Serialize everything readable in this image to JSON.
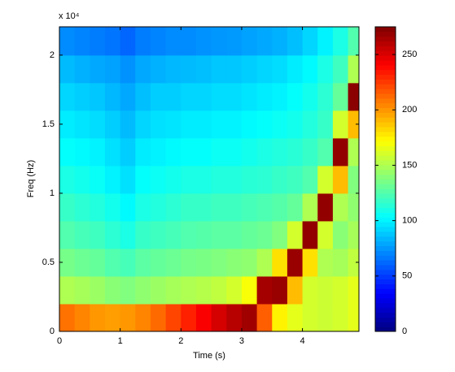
{
  "chart_data": {
    "type": "heatmap",
    "xlabel": "Time (s)",
    "ylabel": "Freq (Hz)",
    "y_multiplier": "x 10⁴",
    "xlim": [
      0,
      4.93
    ],
    "ylim": [
      0,
      22050
    ],
    "xticks": [
      0,
      1,
      2,
      3,
      4
    ],
    "yticks": [
      0,
      {
        "value": 5000,
        "label": "0.5"
      },
      {
        "value": 10000,
        "label": "1"
      },
      {
        "value": 15000,
        "label": "1.5"
      },
      {
        "value": 20000,
        "label": "2"
      }
    ],
    "xbins": [
      0,
      0.25,
      0.5,
      0.75,
      1,
      1.25,
      1.5,
      1.75,
      2,
      2.25,
      2.5,
      2.75,
      3,
      3.25,
      3.5,
      3.75,
      4,
      4.25,
      4.5,
      4.75,
      4.93
    ],
    "ybins": [
      0,
      2000,
      4000,
      6000,
      8000,
      10000,
      12000,
      14000,
      16000,
      18000,
      20000,
      22050
    ],
    "clim": [
      0,
      275
    ],
    "cticks": [
      0,
      50,
      100,
      150,
      200,
      250
    ],
    "colormap": "jet",
    "values": [
      [
        210,
        205,
        200,
        198,
        200,
        205,
        212,
        222,
        232,
        242,
        252,
        260,
        266,
        215,
        175,
        165,
        160,
        158,
        160,
        165
      ],
      [
        150,
        148,
        145,
        140,
        138,
        142,
        145,
        148,
        150,
        152,
        155,
        160,
        170,
        265,
        268,
        190,
        160,
        158,
        160,
        165
      ],
      [
        135,
        132,
        130,
        125,
        122,
        128,
        130,
        132,
        135,
        136,
        138,
        140,
        142,
        150,
        180,
        268,
        180,
        150,
        148,
        155
      ],
      [
        125,
        122,
        120,
        115,
        110,
        118,
        120,
        122,
        125,
        126,
        128,
        128,
        130,
        132,
        138,
        160,
        270,
        160,
        140,
        148
      ],
      [
        118,
        115,
        112,
        108,
        102,
        110,
        112,
        115,
        118,
        118,
        120,
        120,
        122,
        124,
        126,
        130,
        150,
        270,
        150,
        142
      ],
      [
        110,
        108,
        105,
        100,
        95,
        104,
        106,
        108,
        110,
        110,
        112,
        112,
        114,
        115,
        118,
        120,
        125,
        160,
        190,
        138
      ],
      [
        104,
        102,
        100,
        95,
        90,
        98,
        100,
        102,
        104,
        104,
        106,
        106,
        108,
        110,
        112,
        114,
        118,
        125,
        270,
        150
      ],
      [
        98,
        96,
        94,
        90,
        85,
        92,
        95,
        96,
        98,
        98,
        100,
        100,
        102,
        104,
        106,
        108,
        112,
        118,
        160,
        190
      ],
      [
        92,
        90,
        88,
        84,
        80,
        86,
        90,
        90,
        92,
        92,
        94,
        94,
        96,
        98,
        100,
        104,
        108,
        115,
        130,
        272
      ],
      [
        85,
        82,
        80,
        78,
        74,
        80,
        82,
        84,
        85,
        86,
        88,
        88,
        90,
        92,
        94,
        98,
        102,
        110,
        120,
        150
      ],
      [
        72,
        70,
        68,
        66,
        62,
        68,
        70,
        72,
        72,
        74,
        75,
        76,
        78,
        80,
        82,
        86,
        92,
        100,
        110,
        125
      ]
    ]
  }
}
